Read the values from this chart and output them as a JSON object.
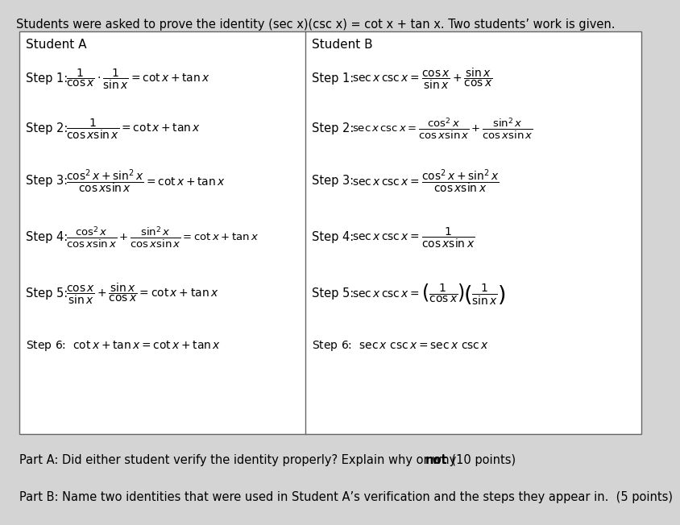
{
  "title": "Students were asked to prove the identity (sec x)(csc x) = cot x + tan x. Two students’ work is given.",
  "bg_color": "#d4d4d4",
  "box_bg": "#ffffff",
  "title_fontsize": 10.5,
  "step_label_fontsize": 10.5,
  "math_fontsize": 10.5,
  "student_a_header": "Student A",
  "student_b_header": "Student B",
  "part_a_plain": "Part A: Did either student verify the identity properly? Explain why or why ",
  "part_a_bold": "not",
  "part_a_end": ". (10 points)",
  "part_b": "Part B: Name two identities that were used in Student A’s verification and the steps they appear in.  (5 points)"
}
